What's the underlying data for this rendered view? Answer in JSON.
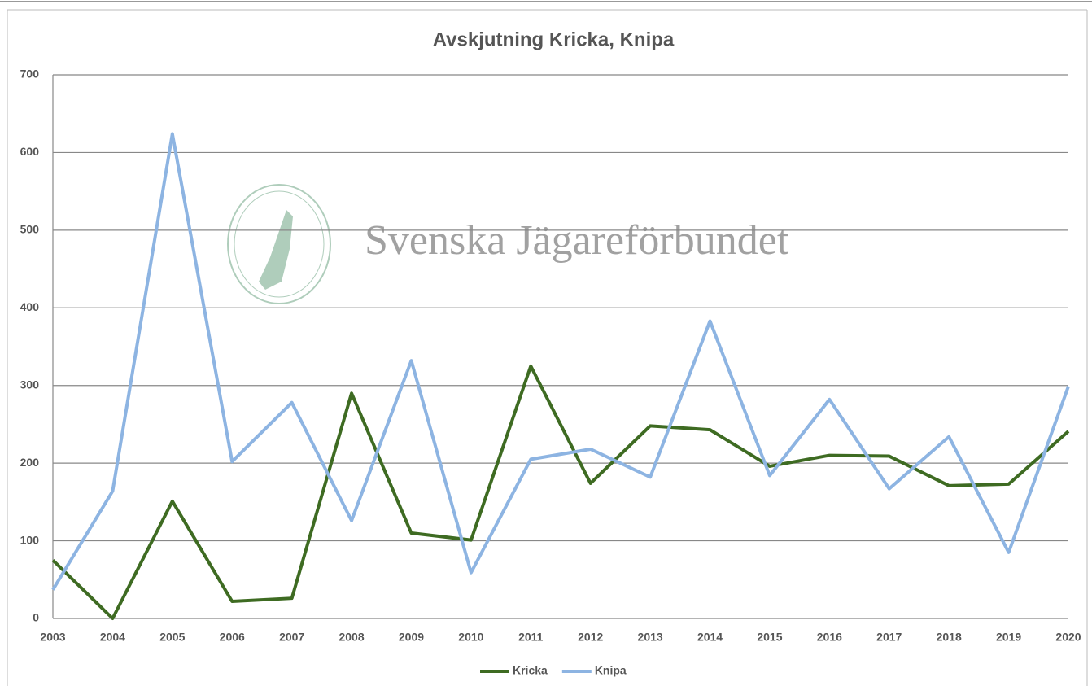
{
  "chart_data": {
    "type": "line",
    "title": "Avskjutning Kricka, Knipa",
    "watermark": "Svenska Jägareförbundet",
    "categories": [
      "2003",
      "2004",
      "2005",
      "2006",
      "2007",
      "2008",
      "2009",
      "2010",
      "2011",
      "2012",
      "2013",
      "2014",
      "2015",
      "2016",
      "2017",
      "2018",
      "2019",
      "2020"
    ],
    "series": [
      {
        "name": "Kricka",
        "color": "#3e6b22",
        "values": [
          75,
          0,
          151,
          22,
          26,
          290,
          110,
          101,
          325,
          174,
          248,
          243,
          196,
          210,
          209,
          171,
          173,
          241
        ]
      },
      {
        "name": "Knipa",
        "color": "#8db4e2",
        "values": [
          37,
          164,
          624,
          202,
          278,
          126,
          332,
          59,
          205,
          218,
          182,
          383,
          184,
          282,
          167,
          234,
          85,
          299
        ]
      }
    ],
    "ylim": [
      0,
      700
    ],
    "yticks": [
      0,
      100,
      200,
      300,
      400,
      500,
      600,
      700
    ],
    "grid": true,
    "legend": "bottom"
  }
}
